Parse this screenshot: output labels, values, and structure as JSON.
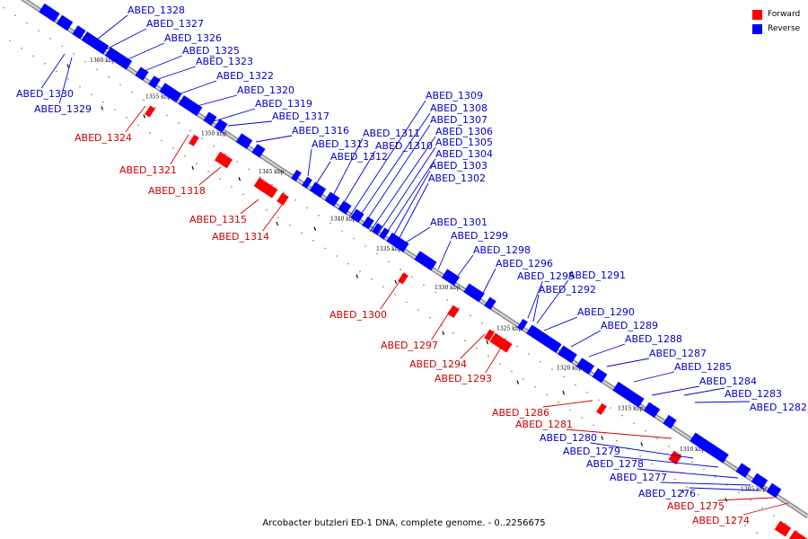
{
  "caption": "Arcobacter butzleri ED-1 DNA, complete genome. - 0..2256675",
  "legend": [
    {
      "label": "Forward",
      "color": "#ff0000"
    },
    {
      "label": "Reverse",
      "color": "#0000ff"
    }
  ],
  "colors": {
    "forward": "#ff0000",
    "reverse": "#0000ff",
    "label_forward": "#cc0000",
    "label_reverse": "#0000cc"
  },
  "ticks": [
    "1360 kbp",
    "1355 kbp",
    "1350 kbp",
    "1345 kbp",
    "1340 kbp",
    "1335 kbp",
    "1330 kbp",
    "1325 kbp",
    "1320 kbp",
    "1315 kbp",
    "1310 kbp",
    "1305 kbp"
  ],
  "genes": [
    {
      "name": "ABED_1328",
      "strand": "reverse"
    },
    {
      "name": "ABED_1327",
      "strand": "reverse"
    },
    {
      "name": "ABED_1326",
      "strand": "reverse"
    },
    {
      "name": "ABED_1325",
      "strand": "reverse"
    },
    {
      "name": "ABED_1323",
      "strand": "reverse"
    },
    {
      "name": "ABED_1322",
      "strand": "reverse"
    },
    {
      "name": "ABED_1320",
      "strand": "reverse"
    },
    {
      "name": "ABED_1319",
      "strand": "reverse"
    },
    {
      "name": "ABED_1317",
      "strand": "reverse"
    },
    {
      "name": "ABED_1316",
      "strand": "reverse"
    },
    {
      "name": "ABED_1313",
      "strand": "reverse"
    },
    {
      "name": "ABED_1312",
      "strand": "reverse"
    },
    {
      "name": "ABED_1311",
      "strand": "reverse"
    },
    {
      "name": "ABED_1310",
      "strand": "reverse"
    },
    {
      "name": "ABED_1309",
      "strand": "reverse"
    },
    {
      "name": "ABED_1308",
      "strand": "reverse"
    },
    {
      "name": "ABED_1307",
      "strand": "reverse"
    },
    {
      "name": "ABED_1306",
      "strand": "reverse"
    },
    {
      "name": "ABED_1305",
      "strand": "reverse"
    },
    {
      "name": "ABED_1304",
      "strand": "reverse"
    },
    {
      "name": "ABED_1303",
      "strand": "reverse"
    },
    {
      "name": "ABED_1302",
      "strand": "reverse"
    },
    {
      "name": "ABED_1301",
      "strand": "reverse"
    },
    {
      "name": "ABED_1299",
      "strand": "reverse"
    },
    {
      "name": "ABED_1298",
      "strand": "reverse"
    },
    {
      "name": "ABED_1296",
      "strand": "reverse"
    },
    {
      "name": "ABED_1295",
      "strand": "reverse"
    },
    {
      "name": "ABED_1291",
      "strand": "reverse"
    },
    {
      "name": "ABED_1292",
      "strand": "reverse"
    },
    {
      "name": "ABED_1290",
      "strand": "reverse"
    },
    {
      "name": "ABED_1289",
      "strand": "reverse"
    },
    {
      "name": "ABED_1288",
      "strand": "reverse"
    },
    {
      "name": "ABED_1287",
      "strand": "reverse"
    },
    {
      "name": "ABED_1285",
      "strand": "reverse"
    },
    {
      "name": "ABED_1284",
      "strand": "reverse"
    },
    {
      "name": "ABED_1283",
      "strand": "reverse"
    },
    {
      "name": "ABED_1282",
      "strand": "reverse"
    },
    {
      "name": "ABED_1330",
      "strand": "reverse"
    },
    {
      "name": "ABED_1329",
      "strand": "reverse"
    },
    {
      "name": "ABED_1324",
      "strand": "forward"
    },
    {
      "name": "ABED_1321",
      "strand": "forward"
    },
    {
      "name": "ABED_1318",
      "strand": "forward"
    },
    {
      "name": "ABED_1315",
      "strand": "forward"
    },
    {
      "name": "ABED_1314",
      "strand": "forward"
    },
    {
      "name": "ABED_1300",
      "strand": "forward"
    },
    {
      "name": "ABED_1297",
      "strand": "forward"
    },
    {
      "name": "ABED_1294",
      "strand": "forward"
    },
    {
      "name": "ABED_1293",
      "strand": "forward"
    },
    {
      "name": "ABED_1286",
      "strand": "forward"
    },
    {
      "name": "ABED_1281",
      "strand": "forward"
    },
    {
      "name": "ABED_1280",
      "strand": "reverse"
    },
    {
      "name": "ABED_1279",
      "strand": "reverse"
    },
    {
      "name": "ABED_1278",
      "strand": "reverse"
    },
    {
      "name": "ABED_1277",
      "strand": "reverse"
    },
    {
      "name": "ABED_1276",
      "strand": "reverse"
    },
    {
      "name": "ABED_1275",
      "strand": "forward"
    },
    {
      "name": "ABED_1274",
      "strand": "forward"
    }
  ]
}
